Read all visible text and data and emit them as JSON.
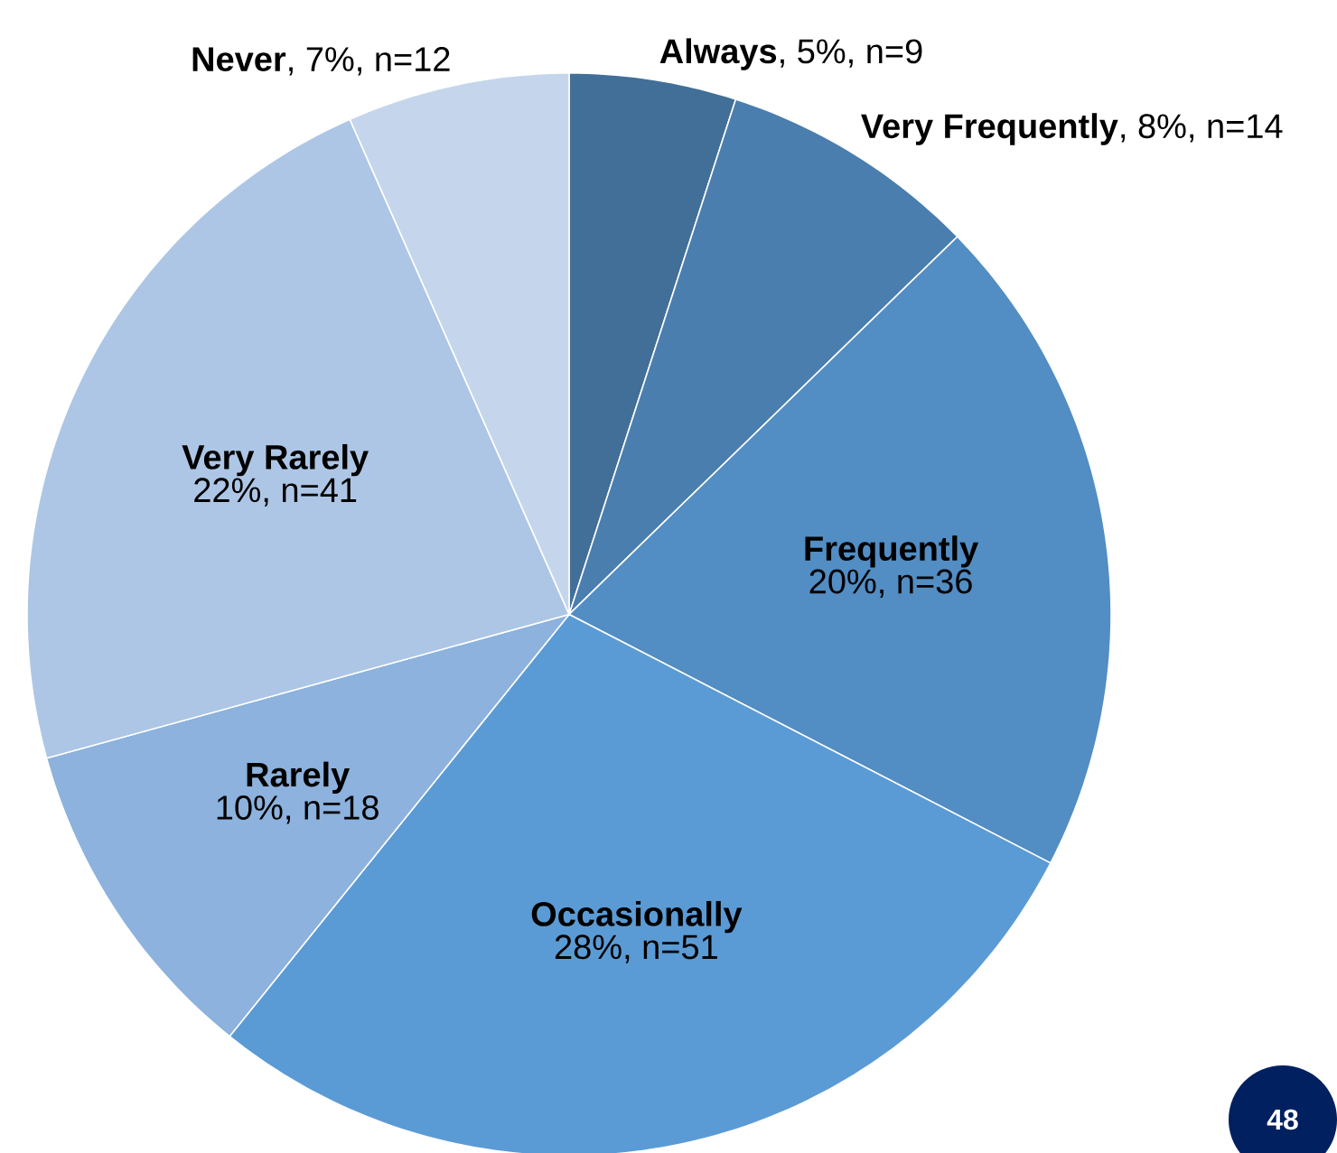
{
  "chart_data": {
    "type": "pie",
    "categories": [
      "Always",
      "Very Frequently",
      "Frequently",
      "Occasionally",
      "Rarely",
      "Very Rarely",
      "Never"
    ],
    "values": [
      9,
      14,
      36,
      51,
      18,
      41,
      12
    ],
    "value_labels": [
      ", 5%, n=9",
      ", 8%, n=14",
      "20%, n=36",
      "28%, n=51",
      "10%, n=18",
      "22%, n=41",
      ", 7%, n=12"
    ],
    "colors": [
      "#426f98",
      "#4a7eae",
      "#528dc3",
      "#5b9bd5",
      "#8cb2dd",
      "#adc6e5",
      "#c5d6ec"
    ],
    "annotations": [
      "48"
    ]
  }
}
